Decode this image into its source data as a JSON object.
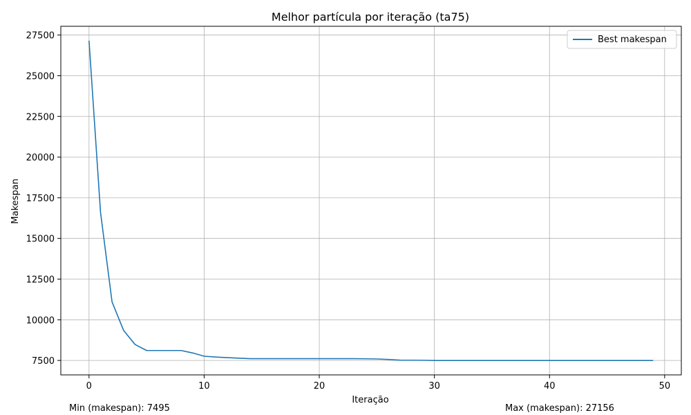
{
  "chart_data": {
    "type": "line",
    "title": "Melhor partícula por iteração (ta75)",
    "xlabel": "Iteração",
    "ylabel": "Makespan",
    "xlim": [
      -2.45,
      51.45
    ],
    "ylim": [
      6612,
      28039
    ],
    "xticks": [
      0,
      10,
      20,
      30,
      40,
      50
    ],
    "yticks": [
      7500,
      10000,
      12500,
      15000,
      17500,
      20000,
      22500,
      25000,
      27500
    ],
    "grid": true,
    "legend_position": "top-right",
    "series": [
      {
        "name": "Best makespan",
        "color": "#1f77b4",
        "x": [
          0,
          1,
          2,
          3,
          4,
          5,
          6,
          7,
          8,
          9,
          10,
          11,
          12,
          13,
          14,
          15,
          16,
          17,
          18,
          19,
          20,
          21,
          22,
          23,
          24,
          25,
          26,
          27,
          28,
          29,
          30,
          31,
          32,
          33,
          34,
          35,
          36,
          37,
          38,
          39,
          40,
          41,
          42,
          43,
          44,
          45,
          46,
          47,
          48,
          49
        ],
        "y": [
          27156,
          16600,
          11100,
          9350,
          8480,
          8110,
          8110,
          8110,
          8110,
          7960,
          7760,
          7710,
          7670,
          7640,
          7610,
          7610,
          7610,
          7610,
          7610,
          7610,
          7610,
          7610,
          7610,
          7610,
          7600,
          7590,
          7560,
          7520,
          7515,
          7510,
          7495,
          7495,
          7495,
          7495,
          7495,
          7495,
          7495,
          7495,
          7495,
          7495,
          7495,
          7495,
          7495,
          7495,
          7495,
          7495,
          7495,
          7495,
          7495,
          7495
        ]
      }
    ],
    "annotations": {
      "min_text": "Min (makespan): 7495",
      "max_text": "Max (makespan): 27156"
    }
  }
}
